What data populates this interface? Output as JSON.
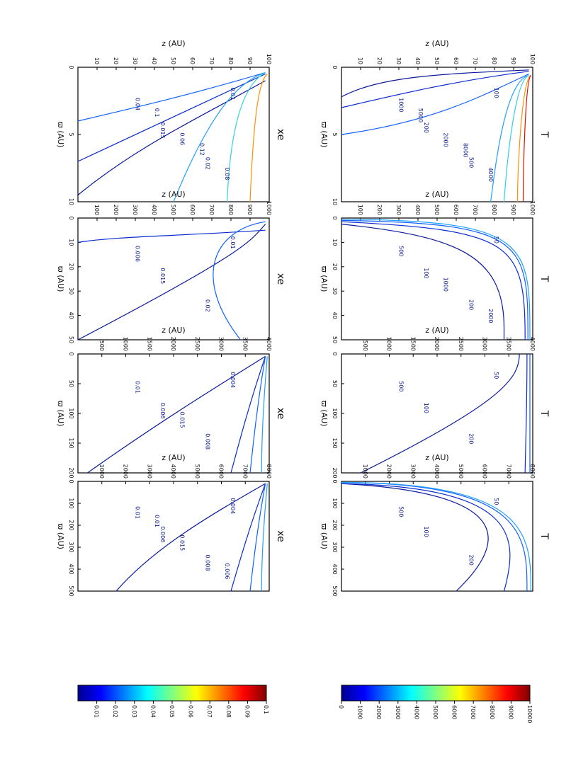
{
  "figure": {
    "colorbars": [
      {
        "id": "temperature",
        "ticks": [
          "0",
          "1000",
          "2000",
          "3000",
          "4000",
          "5000",
          "6000",
          "7000",
          "8000",
          "9000",
          "10000"
        ]
      },
      {
        "id": "xe",
        "ticks": [
          "0.01",
          "0.02",
          "0.03",
          "0.04",
          "0.05",
          "0.06",
          "0.07",
          "0.08",
          "0.09",
          "0.1"
        ]
      }
    ],
    "rows": [
      {
        "quantity": "T",
        "panels": [
          {
            "xlabel": "ϖ (AU)",
            "ylabel": "z (AU)",
            "xticks": [
              "0",
              "5",
              "10"
            ],
            "yticks": [
              "0",
              "10",
              "20",
              "30",
              "40",
              "50",
              "60",
              "70",
              "80",
              "90",
              "100"
            ],
            "contour_labels": [
              "100",
              "200",
              "500",
              "1000",
              "2000",
              "4000",
              "5000",
              "8000"
            ]
          },
          {
            "xlabel": "ϖ (AU)",
            "ylabel": "z (AU)",
            "xticks": [
              "0",
              "10",
              "20",
              "30",
              "40",
              "50"
            ],
            "yticks": [
              "0",
              "100",
              "200",
              "300",
              "400",
              "500",
              "600",
              "700",
              "800",
              "900",
              "1000"
            ],
            "contour_labels": [
              "50",
              "100",
              "200",
              "500",
              "1000",
              "2000"
            ]
          },
          {
            "xlabel": "ϖ (AU)",
            "ylabel": "z (AU)",
            "xticks": [
              "0",
              "50",
              "100",
              "150",
              "200"
            ],
            "yticks": [
              "0",
              "500",
              "1000",
              "1500",
              "2000",
              "2500",
              "3000",
              "3500",
              "4000"
            ],
            "contour_labels": [
              "50",
              "100",
              "200",
              "500"
            ]
          },
          {
            "xlabel": "ϖ (AU)",
            "ylabel": "z (AU)",
            "xticks": [
              "0",
              "100",
              "200",
              "300",
              "400",
              "500"
            ],
            "yticks": [
              "0",
              "1000",
              "2000",
              "3000",
              "4000",
              "5000",
              "6000",
              "7000",
              "8000"
            ],
            "contour_labels": [
              "50",
              "100",
              "200",
              "500"
            ]
          }
        ]
      },
      {
        "quantity": "xe",
        "panels": [
          {
            "xlabel": "ϖ (AU)",
            "ylabel": "z (AU)",
            "xticks": [
              "0",
              "5",
              "10"
            ],
            "yticks": [
              "0",
              "10",
              "20",
              "30",
              "40",
              "50",
              "60",
              "70",
              "80",
              "90",
              "100"
            ],
            "contour_labels": [
              "0.01",
              "0.015",
              "0.02",
              "0.04",
              "0.06",
              "0.08",
              "0.1",
              "0.12"
            ]
          },
          {
            "xlabel": "ϖ (AU)",
            "ylabel": "z (AU)",
            "xticks": [
              "0",
              "10",
              "20",
              "30",
              "40",
              "50"
            ],
            "yticks": [
              "0",
              "100",
              "200",
              "300",
              "400",
              "500",
              "600",
              "700",
              "800",
              "900",
              "1000"
            ],
            "contour_labels": [
              "0.01",
              "0.015",
              "0.02",
              "0.006"
            ]
          },
          {
            "xlabel": "ϖ (AU)",
            "ylabel": "z (AU)",
            "xticks": [
              "0",
              "50",
              "100",
              "150",
              "200"
            ],
            "yticks": [
              "0",
              "500",
              "1000",
              "1500",
              "2000",
              "2500",
              "3000",
              "3500",
              "4000"
            ],
            "contour_labels": [
              "0.004",
              "0.006",
              "0.008",
              "0.01",
              "0.015"
            ]
          },
          {
            "xlabel": "ϖ (AU)",
            "ylabel": "z (AU)",
            "xticks": [
              "0",
              "100",
              "200",
              "300",
              "400",
              "500"
            ],
            "yticks": [
              "0",
              "1000",
              "2000",
              "3000",
              "4000",
              "5000",
              "6000",
              "7000",
              "8000"
            ],
            "contour_labels": [
              "0.004",
              "0.006",
              "0.008",
              "0.01",
              "0.015",
              "0.006",
              "0.01"
            ]
          }
        ]
      }
    ]
  }
}
